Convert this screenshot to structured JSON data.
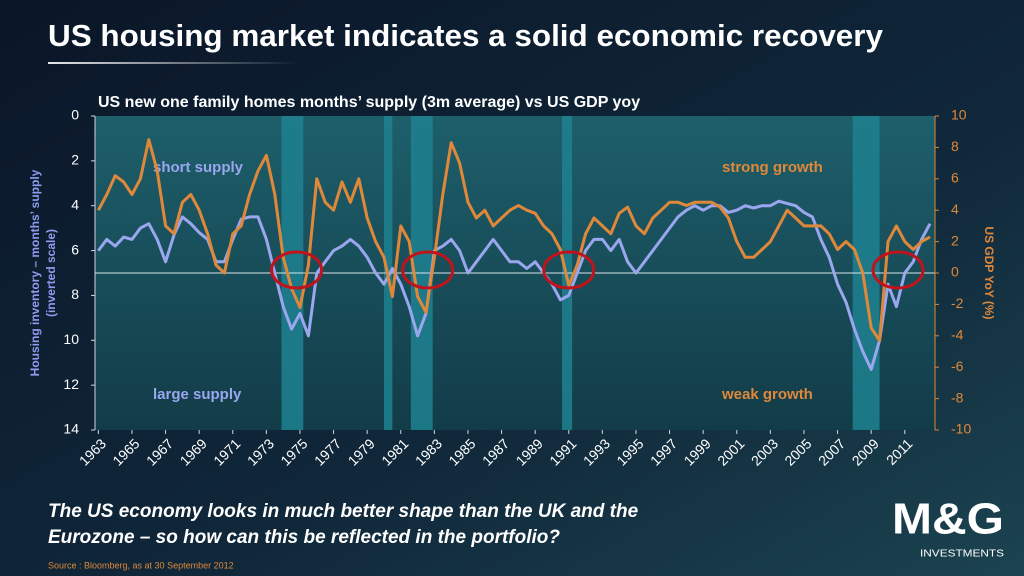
{
  "slide": {
    "title": "US housing market indicates a solid economic recovery",
    "question_lines": [
      "The US economy looks in much better shape than the UK and the",
      "Eurozone – so how can this be reflected in the portfolio?"
    ],
    "source": "Source : Bloomberg, as at 30 September 2012",
    "logo": {
      "brand": "M&G",
      "sub": "INVESTMENTS"
    }
  },
  "chart_data": {
    "type": "line",
    "title": "US new one family homes months’ supply (3m average) vs US GDP yoy",
    "y_label_lines": [
      "Housing inventory – months’ supply",
      "(inverted scale)"
    ],
    "y2_label": "US GDP YoY (%)",
    "annotations": [
      {
        "text": "short supply",
        "color": "#9aa6ee"
      },
      {
        "text": "strong growth",
        "color": "#e0883a"
      },
      {
        "text": "large supply",
        "color": "#9aa6ee"
      },
      {
        "text": "weak growth",
        "color": "#e0883a"
      }
    ],
    "xlim": [
      1962.8,
      2012.8
    ],
    "xticks": [
      1963,
      1965,
      1967,
      1969,
      1971,
      1973,
      1975,
      1977,
      1979,
      1981,
      1983,
      1985,
      1987,
      1989,
      1991,
      1993,
      1995,
      1997,
      1999,
      2001,
      2003,
      2005,
      2007,
      2009,
      2011
    ],
    "ylim": [
      0,
      14
    ],
    "y_inverted": true,
    "yticks": [
      0,
      2,
      4,
      6,
      8,
      10,
      12,
      14
    ],
    "y2lim": [
      -10,
      10
    ],
    "y2ticks": [
      10,
      8,
      6,
      4,
      2,
      0,
      -2,
      -4,
      -6,
      -8,
      -10
    ],
    "reference_y2": 0,
    "shaded_x": [
      [
        1973.9,
        1975.2
      ],
      [
        1980,
        1980.5
      ],
      [
        1981.6,
        1982.9
      ],
      [
        1990.6,
        1991.2
      ],
      [
        2007.9,
        2009.5
      ]
    ],
    "highlight_x": [
      1974.8,
      1982.6,
      1991,
      2010.6
    ],
    "x": [
      1963,
      1963.5,
      1964,
      1964.5,
      1965,
      1965.5,
      1966,
      1966.5,
      1967,
      1967.5,
      1968,
      1968.5,
      1969,
      1969.5,
      1970,
      1970.5,
      1971,
      1971.5,
      1972,
      1972.5,
      1973,
      1973.5,
      1974,
      1974.5,
      1975,
      1975.5,
      1976,
      1976.5,
      1977,
      1977.5,
      1978,
      1978.5,
      1979,
      1979.5,
      1980,
      1980.5,
      1981,
      1981.5,
      1982,
      1982.5,
      1983,
      1983.5,
      1984,
      1984.5,
      1985,
      1985.5,
      1986,
      1986.5,
      1987,
      1987.5,
      1988,
      1988.5,
      1989,
      1989.5,
      1990,
      1990.5,
      1991,
      1991.5,
      1992,
      1992.5,
      1993,
      1993.5,
      1994,
      1994.5,
      1995,
      1995.5,
      1996,
      1996.5,
      1997,
      1997.5,
      1998,
      1998.5,
      1999,
      1999.5,
      2000,
      2000.5,
      2001,
      2001.5,
      2002,
      2002.5,
      2003,
      2003.5,
      2004,
      2004.5,
      2005,
      2005.5,
      2006,
      2006.5,
      2007,
      2007.5,
      2008,
      2008.5,
      2009,
      2009.5,
      2010,
      2010.5,
      2011,
      2011.5,
      2012,
      2012.5
    ],
    "series": [
      {
        "color": "#9aa6ee",
        "values": [
          6.0,
          5.5,
          5.8,
          5.4,
          5.5,
          5.0,
          4.8,
          5.5,
          6.5,
          5.3,
          4.5,
          4.8,
          5.2,
          5.5,
          6.5,
          6.5,
          5.5,
          4.6,
          4.5,
          4.5,
          5.5,
          7.0,
          8.5,
          9.5,
          8.8,
          9.8,
          7.0,
          6.5,
          6.0,
          5.8,
          5.5,
          5.8,
          6.3,
          7.0,
          7.5,
          6.8,
          7.5,
          8.5,
          9.8,
          8.8,
          6.0,
          5.8,
          5.5,
          6.0,
          7.0,
          6.5,
          6.0,
          5.5,
          6.0,
          6.5,
          6.5,
          6.8,
          6.5,
          7.0,
          7.5,
          8.2,
          8.0,
          7.0,
          6.0,
          5.5,
          5.5,
          6.0,
          5.5,
          6.5,
          7.0,
          6.5,
          6.0,
          5.5,
          5.0,
          4.5,
          4.2,
          4.0,
          4.2,
          4.0,
          4.0,
          4.3,
          4.2,
          4.0,
          4.1,
          4.0,
          4.0,
          3.8,
          3.9,
          4.0,
          4.3,
          4.5,
          5.5,
          6.3,
          7.5,
          8.3,
          9.5,
          10.5,
          11.3,
          10.0,
          7.5,
          8.5,
          7.0,
          6.5,
          5.5,
          4.8
        ]
      },
      {
        "color": "#e0883a",
        "axis": "y2",
        "values": [
          4.0,
          5.0,
          6.2,
          5.8,
          5.0,
          6.0,
          8.5,
          6.5,
          3.0,
          2.5,
          4.5,
          5.0,
          4.0,
          2.5,
          0.5,
          0.0,
          2.5,
          3.0,
          5.0,
          6.5,
          7.5,
          5.0,
          1.0,
          -1.0,
          -2.2,
          0.5,
          6.0,
          4.5,
          4.0,
          5.8,
          4.5,
          6.0,
          3.5,
          2.0,
          1.0,
          -1.5,
          3.0,
          2.0,
          -1.5,
          -2.5,
          1.0,
          5.0,
          8.3,
          7.0,
          4.5,
          3.5,
          4.0,
          3.0,
          3.5,
          4.0,
          4.3,
          4.0,
          3.8,
          3.0,
          2.5,
          1.5,
          -0.8,
          0.5,
          2.5,
          3.5,
          3.0,
          2.5,
          3.8,
          4.2,
          3.0,
          2.5,
          3.5,
          4.0,
          4.5,
          4.5,
          4.3,
          4.5,
          4.5,
          4.5,
          4.2,
          3.5,
          2.0,
          1.0,
          1.0,
          1.5,
          2.0,
          3.0,
          4.0,
          3.5,
          3.0,
          3.0,
          3.0,
          2.5,
          1.5,
          2.0,
          1.5,
          0.0,
          -3.5,
          -4.3,
          2.0,
          3.0,
          2.0,
          1.5,
          2.0,
          2.3
        ]
      }
    ]
  }
}
